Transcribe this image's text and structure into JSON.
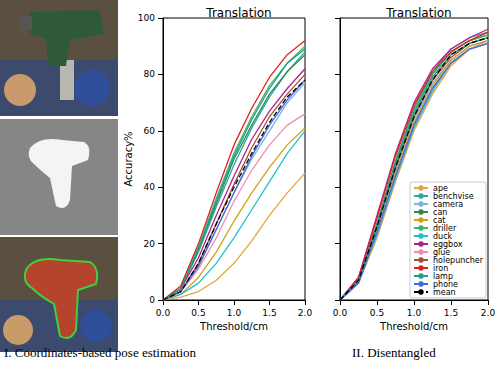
{
  "captions": [
    "I. Coordinates-based pose estimation",
    "II. Disentangled"
  ],
  "chart_data": [
    {
      "type": "line",
      "title": "Translation",
      "x_label": "Threshold/cm",
      "y_label": "Accuracy%",
      "x": [
        0,
        0.25,
        0.5,
        0.75,
        1.0,
        1.25,
        1.5,
        1.75,
        2.0
      ],
      "xlim": [
        0,
        2
      ],
      "ylim": [
        0,
        100
      ],
      "xticks": [
        {
          "value": 0,
          "label": "0.0"
        },
        {
          "value": 0.5,
          "label": "0.5"
        },
        {
          "value": 1,
          "label": "1.0"
        },
        {
          "value": 1.5,
          "label": "1.5"
        },
        {
          "value": 2,
          "label": "2.0"
        }
      ],
      "yticks": [
        0,
        20,
        40,
        60,
        80,
        100
      ],
      "grid": false,
      "series": [
        {
          "name": "ape",
          "color": "#e8a33d",
          "values": [
            0,
            1,
            3,
            7,
            13,
            21,
            30,
            38,
            45
          ]
        },
        {
          "name": "benchvise",
          "color": "#2ca8a0",
          "values": [
            0,
            4,
            17,
            33,
            48,
            61,
            72,
            81,
            88
          ]
        },
        {
          "name": "camera",
          "color": "#7fb0e0",
          "values": [
            0,
            3,
            12,
            25,
            38,
            50,
            60,
            70,
            77
          ]
        },
        {
          "name": "can",
          "color": "#2e8b57",
          "values": [
            0,
            4,
            18,
            34,
            50,
            62,
            73,
            81,
            87
          ]
        },
        {
          "name": "cat",
          "color": "#d4a017",
          "values": [
            0,
            2,
            8,
            17,
            28,
            38,
            47,
            55,
            61
          ]
        },
        {
          "name": "driller",
          "color": "#3cb371",
          "values": [
            0,
            4,
            19,
            36,
            52,
            65,
            76,
            84,
            90
          ]
        },
        {
          "name": "duck",
          "color": "#20c0d0",
          "values": [
            0,
            2,
            6,
            13,
            22,
            32,
            42,
            52,
            60
          ]
        },
        {
          "name": "eggbox",
          "color": "#b0208c",
          "values": [
            0,
            4,
            15,
            30,
            44,
            57,
            67,
            75,
            82
          ]
        },
        {
          "name": "glue",
          "color": "#f08cb4",
          "values": [
            0,
            3,
            11,
            22,
            35,
            46,
            55,
            62,
            66
          ]
        },
        {
          "name": "holepuncher",
          "color": "#a0522d",
          "values": [
            0,
            3,
            13,
            27,
            41,
            54,
            65,
            73,
            80
          ]
        },
        {
          "name": "iron",
          "color": "#e02020",
          "values": [
            0,
            5,
            20,
            38,
            55,
            68,
            79,
            87,
            92
          ]
        },
        {
          "name": "lamp",
          "color": "#1fa07f",
          "values": [
            0,
            4,
            18,
            35,
            51,
            64,
            75,
            84,
            89
          ]
        },
        {
          "name": "phone",
          "color": "#4169e1",
          "values": [
            0,
            3,
            12,
            25,
            38,
            51,
            62,
            71,
            78
          ]
        },
        {
          "name": "mean",
          "color": "#000000",
          "line_style": "dashed",
          "values": [
            0,
            3,
            13,
            27,
            40,
            52,
            63,
            72,
            78
          ]
        }
      ]
    },
    {
      "type": "line",
      "title": "Translation",
      "x_label": "Threshold/cm",
      "x": [
        0,
        0.25,
        0.5,
        0.75,
        1.0,
        1.25,
        1.5,
        1.75,
        2.0
      ],
      "xlim": [
        0,
        2
      ],
      "ylim": [
        0,
        100
      ],
      "xticks": [
        {
          "value": 0,
          "label": "0.0"
        },
        {
          "value": 0.5,
          "label": "0.5"
        },
        {
          "value": 1,
          "label": "1.0"
        },
        {
          "value": 1.5,
          "label": "1.5"
        },
        {
          "value": 2,
          "label": "2.0"
        }
      ],
      "yticks": [
        0,
        20,
        40,
        60,
        80,
        100
      ],
      "grid": false,
      "tick_labels": "x",
      "legend": "lower right",
      "series": [
        {
          "name": "ape",
          "color": "#e8a33d",
          "values": [
            0,
            6,
            22,
            42,
            60,
            73,
            83,
            89,
            92
          ]
        },
        {
          "name": "benchvise",
          "color": "#2ca8a0",
          "values": [
            0,
            7,
            27,
            49,
            68,
            81,
            89,
            93,
            95
          ]
        },
        {
          "name": "camera",
          "color": "#7fb0e0",
          "values": [
            0,
            7,
            25,
            46,
            64,
            77,
            85,
            90,
            92
          ]
        },
        {
          "name": "can",
          "color": "#2e8b57",
          "values": [
            0,
            7,
            27,
            49,
            67,
            80,
            88,
            92,
            94
          ]
        },
        {
          "name": "cat",
          "color": "#d4a017",
          "values": [
            0,
            6,
            24,
            45,
            63,
            76,
            85,
            90,
            92
          ]
        },
        {
          "name": "driller",
          "color": "#3cb371",
          "values": [
            0,
            7,
            26,
            48,
            67,
            80,
            88,
            92,
            94
          ]
        },
        {
          "name": "duck",
          "color": "#20c0d0",
          "values": [
            0,
            6,
            23,
            43,
            61,
            74,
            84,
            89,
            91
          ]
        },
        {
          "name": "eggbox",
          "color": "#b0208c",
          "values": [
            0,
            8,
            30,
            52,
            70,
            82,
            89,
            93,
            96
          ]
        },
        {
          "name": "glue",
          "color": "#f08cb4",
          "values": [
            0,
            6,
            24,
            44,
            62,
            75,
            84,
            89,
            91
          ]
        },
        {
          "name": "holepuncher",
          "color": "#a0522d",
          "values": [
            0,
            7,
            26,
            47,
            65,
            78,
            86,
            91,
            93
          ]
        },
        {
          "name": "iron",
          "color": "#e02020",
          "values": [
            0,
            8,
            29,
            51,
            69,
            81,
            88,
            92,
            95
          ]
        },
        {
          "name": "lamp",
          "color": "#1fa07f",
          "values": [
            0,
            7,
            26,
            48,
            66,
            79,
            87,
            91,
            93
          ]
        },
        {
          "name": "phone",
          "color": "#4169e1",
          "values": [
            0,
            6,
            24,
            44,
            62,
            75,
            84,
            89,
            91
          ]
        },
        {
          "name": "mean",
          "color": "#000000",
          "line_style": "dashed",
          "values": [
            0,
            7,
            26,
            47,
            65,
            78,
            87,
            91,
            93
          ]
        }
      ]
    }
  ]
}
